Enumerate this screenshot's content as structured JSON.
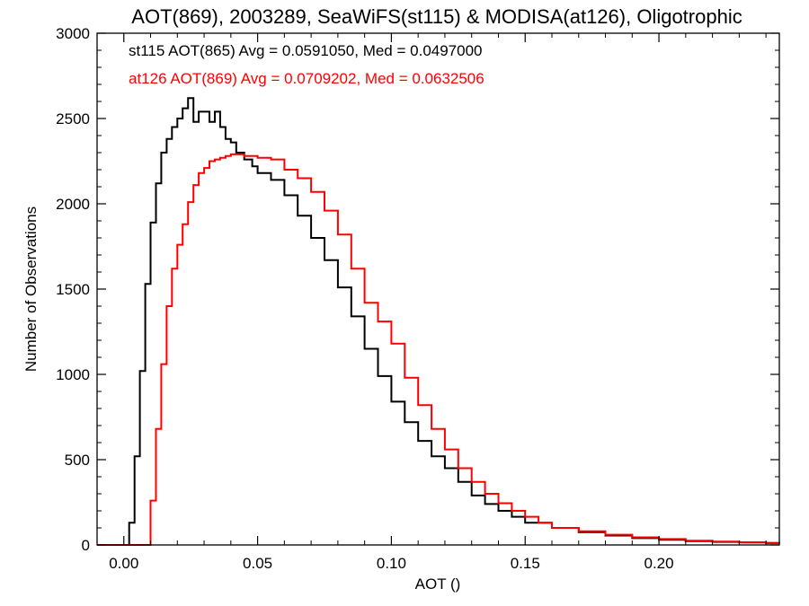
{
  "chart_data": {
    "type": "line",
    "step": true,
    "title": "AOT(869), 2003289, SeaWiFS(st115) & MODISA(at126), Oligotrophic",
    "xlabel": "AOT ()",
    "ylabel": "Number of Observations",
    "xlim": [
      -0.01,
      0.245
    ],
    "ylim": [
      0,
      3000
    ],
    "xticks": [
      0.0,
      0.05,
      0.1,
      0.15,
      0.2
    ],
    "xtick_labels": [
      "0.00",
      "0.05",
      "0.10",
      "0.15",
      "0.20"
    ],
    "yticks": [
      0,
      500,
      1000,
      1500,
      2000,
      2500,
      3000
    ],
    "ytick_labels": [
      "0",
      "500",
      "1000",
      "1500",
      "2000",
      "2500",
      "3000"
    ],
    "grid": false,
    "annotations": [
      {
        "text": "st115 AOT(865) Avg = 0.0591050, Med = 0.0497000",
        "color": "#000000"
      },
      {
        "text": "at126 AOT(869) Avg = 0.0709202, Med = 0.0632506",
        "color": "#ff0000"
      }
    ],
    "series": [
      {
        "color": "#000000",
        "x": [
          -0.01,
          0.0,
          0.002,
          0.004,
          0.006,
          0.008,
          0.01,
          0.012,
          0.014,
          0.016,
          0.018,
          0.02,
          0.022,
          0.024,
          0.026,
          0.028,
          0.03,
          0.032,
          0.034,
          0.036,
          0.038,
          0.04,
          0.042,
          0.045,
          0.048,
          0.05,
          0.055,
          0.06,
          0.065,
          0.07,
          0.075,
          0.08,
          0.085,
          0.09,
          0.095,
          0.1,
          0.105,
          0.11,
          0.115,
          0.12,
          0.125,
          0.13,
          0.135,
          0.14,
          0.145,
          0.15,
          0.16,
          0.17,
          0.18,
          0.19,
          0.2,
          0.21,
          0.22,
          0.23,
          0.24,
          0.245
        ],
        "y": [
          0,
          0,
          130,
          520,
          1020,
          1530,
          1890,
          2120,
          2300,
          2380,
          2450,
          2500,
          2560,
          2620,
          2480,
          2540,
          2540,
          2480,
          2540,
          2450,
          2380,
          2360,
          2300,
          2260,
          2220,
          2180,
          2140,
          2050,
          1930,
          1800,
          1670,
          1510,
          1340,
          1150,
          990,
          840,
          720,
          610,
          520,
          450,
          370,
          290,
          240,
          200,
          165,
          130,
          100,
          75,
          55,
          40,
          30,
          22,
          18,
          15,
          12,
          10
        ]
      },
      {
        "color": "#ff0000",
        "x": [
          -0.01,
          0.008,
          0.01,
          0.012,
          0.014,
          0.016,
          0.018,
          0.02,
          0.022,
          0.024,
          0.026,
          0.028,
          0.03,
          0.032,
          0.034,
          0.036,
          0.038,
          0.04,
          0.045,
          0.05,
          0.055,
          0.06,
          0.065,
          0.07,
          0.075,
          0.08,
          0.085,
          0.09,
          0.095,
          0.1,
          0.105,
          0.11,
          0.115,
          0.12,
          0.125,
          0.13,
          0.135,
          0.14,
          0.145,
          0.15,
          0.155,
          0.16,
          0.17,
          0.18,
          0.19,
          0.2,
          0.21,
          0.22,
          0.23,
          0.24,
          0.245
        ],
        "y": [
          0,
          0,
          260,
          680,
          1060,
          1400,
          1620,
          1760,
          1880,
          2010,
          2110,
          2180,
          2210,
          2250,
          2260,
          2270,
          2280,
          2290,
          2280,
          2270,
          2260,
          2200,
          2150,
          2070,
          1960,
          1820,
          1620,
          1420,
          1310,
          1180,
          980,
          820,
          680,
          560,
          450,
          370,
          300,
          245,
          200,
          165,
          130,
          100,
          80,
          60,
          45,
          35,
          25,
          20,
          15,
          10,
          8
        ]
      }
    ]
  }
}
